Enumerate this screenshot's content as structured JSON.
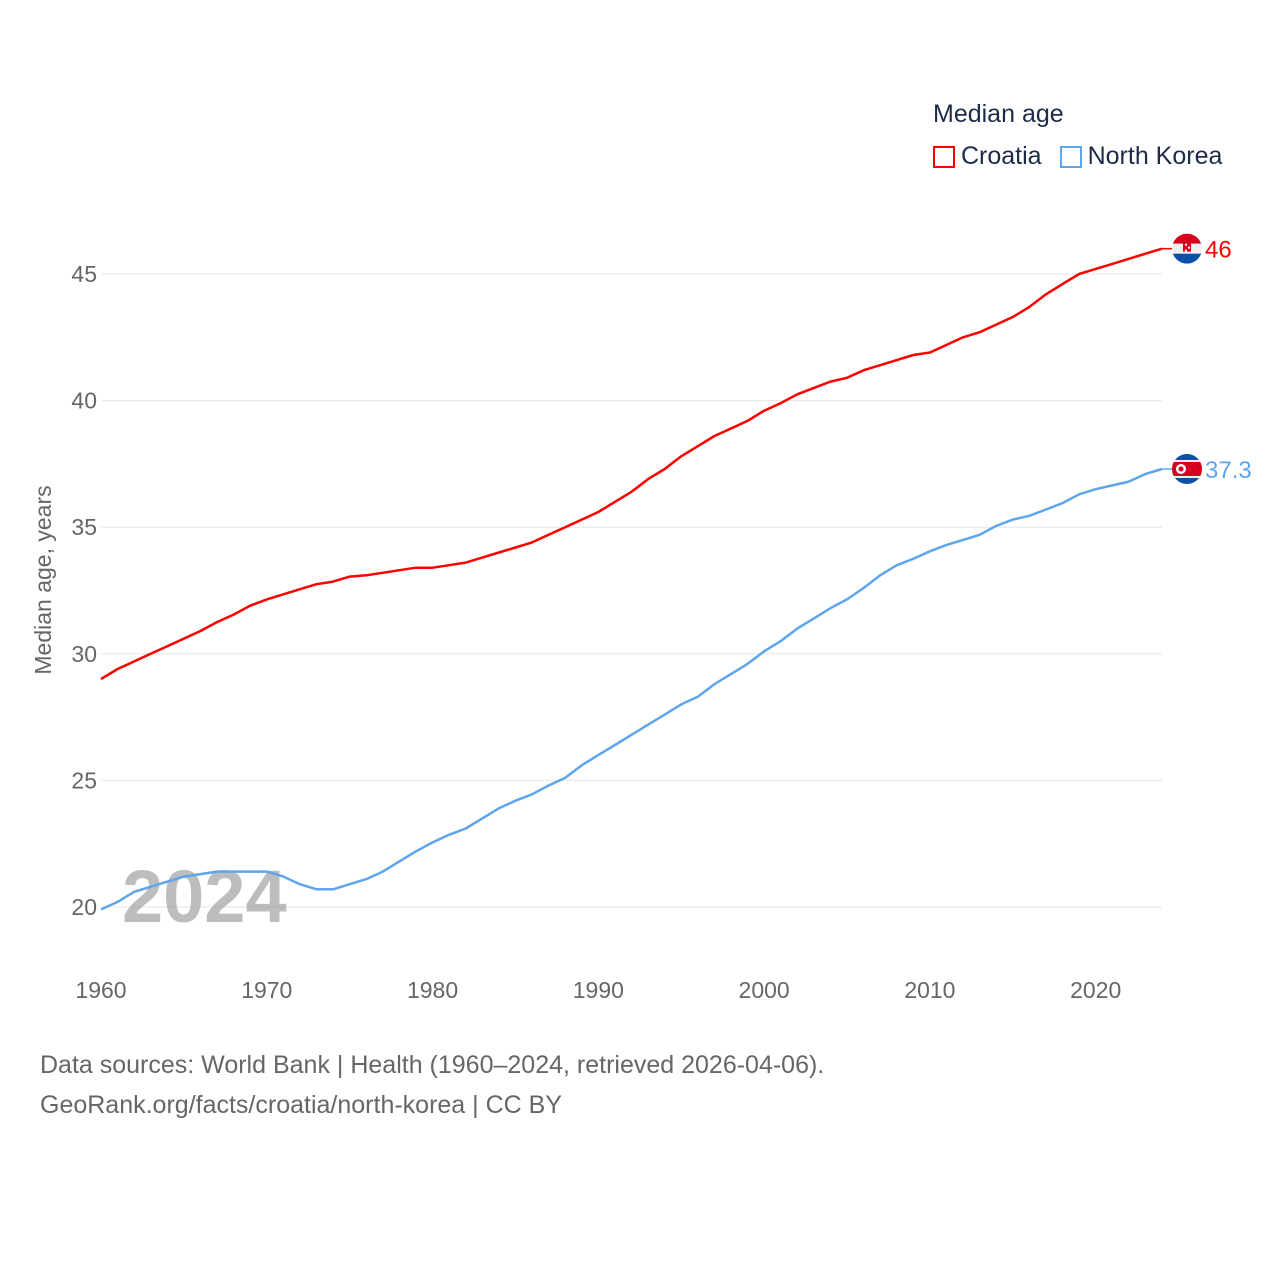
{
  "chart_data": {
    "type": "line",
    "title": "Median age",
    "xlabel": "",
    "ylabel": "Median age, years",
    "xlim": [
      1960,
      2024
    ],
    "ylim": [
      20,
      46
    ],
    "yticks": [
      20,
      25,
      30,
      35,
      40,
      45
    ],
    "xticks": [
      1960,
      1970,
      1980,
      1990,
      2000,
      2010,
      2020
    ],
    "grid": true,
    "legend_position": "top-right",
    "year_watermark": "2024",
    "x_start": 1960,
    "series": [
      {
        "name": "Croatia",
        "color": "#ff0000",
        "end_label": "46",
        "flag": "croatia-flag",
        "values": [
          29.0,
          29.4,
          29.7,
          30.0,
          30.3,
          30.6,
          30.9,
          31.25,
          31.55,
          31.9,
          32.15,
          32.35,
          32.55,
          32.75,
          32.85,
          33.05,
          33.1,
          33.2,
          33.3,
          33.4,
          33.4,
          33.5,
          33.6,
          33.8,
          34.0,
          34.2,
          34.4,
          34.7,
          35.0,
          35.3,
          35.6,
          36.0,
          36.4,
          36.9,
          37.3,
          37.8,
          38.2,
          38.6,
          38.9,
          39.2,
          39.6,
          39.9,
          40.25,
          40.5,
          40.75,
          40.9,
          41.2,
          41.4,
          41.6,
          41.8,
          41.9,
          42.2,
          42.5,
          42.7,
          43.0,
          43.3,
          43.7,
          44.2,
          44.6,
          45.0,
          45.2,
          45.4,
          45.6,
          45.8,
          46.0
        ]
      },
      {
        "name": "North Korea",
        "color": "#5ea5ec",
        "end_label": "37.3",
        "flag": "north-korea-flag",
        "values": [
          19.9,
          20.2,
          20.6,
          20.8,
          21.0,
          21.2,
          21.3,
          21.4,
          21.4,
          21.4,
          21.4,
          21.2,
          20.9,
          20.7,
          20.7,
          20.9,
          21.1,
          21.4,
          21.8,
          22.2,
          22.55,
          22.85,
          23.1,
          23.5,
          23.9,
          24.2,
          24.45,
          24.8,
          25.1,
          25.6,
          26.0,
          26.4,
          26.8,
          27.2,
          27.6,
          28.0,
          28.3,
          28.8,
          29.2,
          29.6,
          30.1,
          30.5,
          31.0,
          31.4,
          31.8,
          32.15,
          32.6,
          33.1,
          33.5,
          33.75,
          34.05,
          34.3,
          34.5,
          34.7,
          35.05,
          35.3,
          35.45,
          35.7,
          35.95,
          36.3,
          36.5,
          36.65,
          36.8,
          37.1,
          37.3
        ]
      }
    ]
  },
  "footer": {
    "line1": "Data sources: World Bank | Health (1960–2024, retrieved 2026-04-06).",
    "line2": "GeoRank.org/facts/croatia/north-korea | CC BY"
  }
}
